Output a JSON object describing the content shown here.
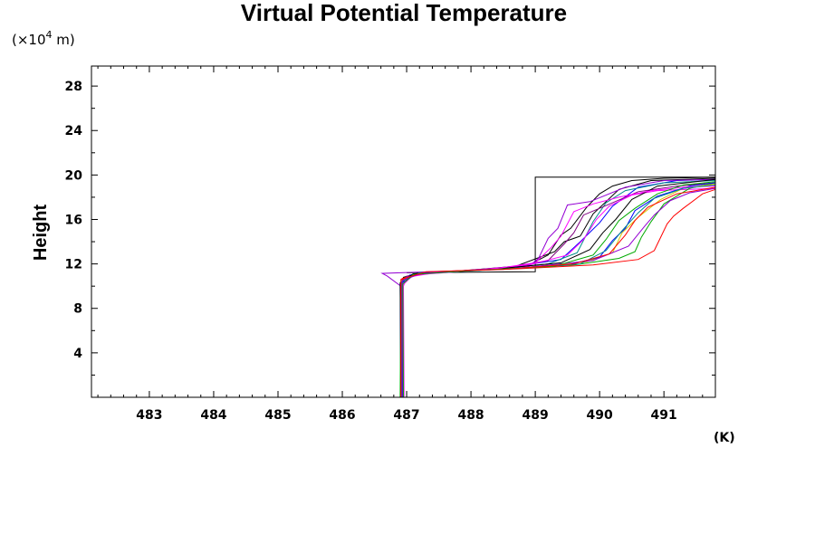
{
  "chart_data": {
    "type": "line",
    "title": "Virtual Potential Temperature",
    "ylabel": "Height",
    "y_unit": {
      "prefix": "(×10",
      "exponent": "4",
      "suffix": " m)"
    },
    "x_unit": "(K)",
    "xlim": [
      482.1,
      491.8
    ],
    "ylim": [
      0,
      29.8
    ],
    "x_ticks": [
      483,
      484,
      485,
      486,
      487,
      488,
      489,
      490,
      491
    ],
    "y_ticks": [
      4,
      8,
      12,
      16,
      20,
      24,
      28
    ],
    "grid": false,
    "legend": "none",
    "series": [
      {
        "color": "#000000",
        "points": [
          [
            486.93,
            0
          ],
          [
            486.92,
            10
          ],
          [
            486.95,
            10.8
          ],
          [
            487.2,
            11.2
          ],
          [
            487.8,
            11.35
          ],
          [
            488.4,
            11.5
          ],
          [
            488.9,
            11.9
          ],
          [
            489.2,
            12.8
          ],
          [
            489.4,
            14.6
          ],
          [
            489.55,
            15.2
          ],
          [
            489.8,
            17.1
          ],
          [
            490.0,
            18.3
          ],
          [
            490.2,
            19.0
          ],
          [
            490.5,
            19.5
          ],
          [
            491.0,
            19.7
          ],
          [
            491.8,
            19.8
          ]
        ]
      },
      {
        "color": "#000000",
        "points": [
          [
            486.93,
            0
          ],
          [
            486.93,
            10.5
          ],
          [
            487.1,
            11.1
          ],
          [
            488.0,
            11.45
          ],
          [
            488.7,
            11.8
          ],
          [
            489.3,
            13.1
          ],
          [
            489.45,
            14.0
          ],
          [
            489.7,
            14.5
          ],
          [
            489.9,
            16.5
          ],
          [
            490.3,
            18.7
          ],
          [
            490.8,
            19.5
          ],
          [
            491.8,
            19.7
          ]
        ]
      },
      {
        "color": "#000000",
        "points": [
          [
            487.0,
            11.2
          ],
          [
            489.0,
            11.3
          ],
          [
            489.0,
            19.8
          ],
          [
            491.8,
            19.8
          ]
        ]
      },
      {
        "color": "#0000ff",
        "points": [
          [
            486.91,
            0
          ],
          [
            486.9,
            10.2
          ],
          [
            487.05,
            11.0
          ],
          [
            487.6,
            11.3
          ],
          [
            488.5,
            11.6
          ],
          [
            489.4,
            12.4
          ],
          [
            489.7,
            14.0
          ],
          [
            490.0,
            15.7
          ],
          [
            490.2,
            17.2
          ],
          [
            490.6,
            18.9
          ],
          [
            491.2,
            19.5
          ],
          [
            491.8,
            19.6
          ]
        ]
      },
      {
        "color": "#008b8b",
        "points": [
          [
            486.94,
            0
          ],
          [
            486.93,
            10.3
          ],
          [
            487.1,
            11.1
          ],
          [
            488.1,
            11.4
          ],
          [
            489.2,
            12.0
          ],
          [
            489.65,
            13.0
          ],
          [
            489.9,
            15.8
          ],
          [
            490.1,
            17.5
          ],
          [
            490.4,
            18.6
          ],
          [
            491.0,
            19.3
          ],
          [
            491.8,
            19.5
          ]
        ]
      },
      {
        "color": "#9400d3",
        "points": [
          [
            486.92,
            0
          ],
          [
            486.91,
            10.0
          ],
          [
            486.7,
            10.9
          ],
          [
            486.62,
            11.15
          ],
          [
            486.9,
            11.2
          ],
          [
            487.9,
            11.4
          ],
          [
            488.9,
            11.8
          ],
          [
            489.05,
            12.5
          ],
          [
            489.2,
            14.3
          ],
          [
            489.35,
            15.2
          ],
          [
            489.5,
            17.3
          ],
          [
            489.85,
            17.6
          ],
          [
            490.4,
            18.9
          ],
          [
            491.0,
            19.5
          ],
          [
            491.8,
            19.6
          ]
        ]
      },
      {
        "color": "#800080",
        "points": [
          [
            486.92,
            0
          ],
          [
            486.92,
            10.2
          ],
          [
            487.0,
            10.9
          ],
          [
            487.6,
            11.3
          ],
          [
            488.6,
            11.7
          ],
          [
            489.2,
            12.3
          ],
          [
            489.45,
            13.8
          ],
          [
            489.6,
            14.8
          ],
          [
            489.75,
            16.4
          ],
          [
            490.0,
            17.0
          ],
          [
            490.6,
            18.5
          ],
          [
            491.2,
            19.0
          ],
          [
            491.8,
            19.3
          ]
        ]
      },
      {
        "color": "#ff00ff",
        "points": [
          [
            486.95,
            0
          ],
          [
            486.94,
            10.1
          ],
          [
            487.1,
            11.0
          ],
          [
            487.8,
            11.3
          ],
          [
            488.9,
            11.9
          ],
          [
            489.5,
            12.8
          ],
          [
            489.75,
            14.2
          ],
          [
            489.95,
            16.0
          ],
          [
            490.15,
            17.2
          ],
          [
            490.5,
            18.2
          ],
          [
            490.9,
            18.6
          ],
          [
            491.8,
            18.8
          ]
        ]
      },
      {
        "color": "#00aa00",
        "points": [
          [
            486.9,
            0
          ],
          [
            486.91,
            10.4
          ],
          [
            487.2,
            11.2
          ],
          [
            488.4,
            11.5
          ],
          [
            489.6,
            11.9
          ],
          [
            490.3,
            12.5
          ],
          [
            490.55,
            13.1
          ],
          [
            490.65,
            14.4
          ],
          [
            490.8,
            15.8
          ],
          [
            491.0,
            17.4
          ],
          [
            491.4,
            18.8
          ],
          [
            491.8,
            19.3
          ]
        ]
      },
      {
        "color": "#d4c800",
        "points": [
          [
            486.92,
            0
          ],
          [
            486.92,
            10.6
          ],
          [
            487.3,
            11.25
          ],
          [
            488.6,
            11.55
          ],
          [
            489.8,
            12.2
          ],
          [
            490.2,
            13.0
          ],
          [
            490.35,
            14.8
          ],
          [
            490.6,
            16.2
          ],
          [
            490.95,
            17.8
          ],
          [
            491.3,
            18.8
          ],
          [
            491.8,
            19.2
          ]
        ]
      },
      {
        "color": "#ff0000",
        "points": [
          [
            486.93,
            0
          ],
          [
            486.93,
            10.7
          ],
          [
            487.4,
            11.3
          ],
          [
            488.7,
            11.55
          ],
          [
            489.9,
            11.9
          ],
          [
            490.6,
            12.4
          ],
          [
            490.85,
            13.2
          ],
          [
            490.95,
            14.4
          ],
          [
            491.05,
            15.6
          ],
          [
            491.15,
            16.3
          ],
          [
            491.3,
            17.0
          ],
          [
            491.6,
            18.3
          ],
          [
            491.8,
            18.7
          ]
        ]
      },
      {
        "color": "#0000ff",
        "points": [
          [
            486.94,
            0
          ],
          [
            486.93,
            10.3
          ],
          [
            487.15,
            11.1
          ],
          [
            488.2,
            11.45
          ],
          [
            489.5,
            11.9
          ],
          [
            490.0,
            12.6
          ],
          [
            490.2,
            14.1
          ],
          [
            490.4,
            15.2
          ],
          [
            490.55,
            16.8
          ],
          [
            490.9,
            18.1
          ],
          [
            491.4,
            19.0
          ],
          [
            491.8,
            19.3
          ]
        ]
      },
      {
        "color": "#000000",
        "points": [
          [
            486.91,
            0
          ],
          [
            486.9,
            10.3
          ],
          [
            487.1,
            11.1
          ],
          [
            488.3,
            11.5
          ],
          [
            489.4,
            12.1
          ],
          [
            489.85,
            13.3
          ],
          [
            490.05,
            14.8
          ],
          [
            490.25,
            16.0
          ],
          [
            490.5,
            17.8
          ],
          [
            490.9,
            19.0
          ],
          [
            491.8,
            19.6
          ]
        ]
      },
      {
        "color": "#ff00ff",
        "points": [
          [
            486.96,
            0
          ],
          [
            486.95,
            10.0
          ],
          [
            487.0,
            10.8
          ],
          [
            487.5,
            11.25
          ],
          [
            488.3,
            11.5
          ],
          [
            489.0,
            12.1
          ],
          [
            489.25,
            13.5
          ],
          [
            489.4,
            14.5
          ],
          [
            489.6,
            16.7
          ],
          [
            489.9,
            17.4
          ],
          [
            490.3,
            18.0
          ],
          [
            490.8,
            18.6
          ],
          [
            491.3,
            18.9
          ],
          [
            491.8,
            19.0
          ]
        ]
      },
      {
        "color": "#008b8b",
        "points": [
          [
            486.92,
            0
          ],
          [
            486.92,
            10.4
          ],
          [
            487.2,
            11.2
          ],
          [
            488.5,
            11.5
          ],
          [
            489.7,
            12.0
          ],
          [
            490.1,
            13.2
          ],
          [
            490.35,
            15.0
          ],
          [
            490.6,
            16.6
          ],
          [
            490.85,
            17.9
          ],
          [
            491.3,
            18.8
          ],
          [
            491.8,
            19.1
          ]
        ]
      },
      {
        "color": "#9400d3",
        "points": [
          [
            486.93,
            0
          ],
          [
            486.93,
            10.5
          ],
          [
            487.25,
            11.2
          ],
          [
            488.7,
            11.6
          ],
          [
            489.9,
            12.3
          ],
          [
            490.45,
            13.6
          ],
          [
            490.7,
            15.4
          ],
          [
            490.85,
            16.4
          ],
          [
            491.1,
            17.7
          ],
          [
            491.4,
            18.4
          ],
          [
            491.8,
            18.8
          ]
        ]
      },
      {
        "color": "#00aa00",
        "points": [
          [
            486.95,
            0
          ],
          [
            486.94,
            10.2
          ],
          [
            487.1,
            11.05
          ],
          [
            488.0,
            11.4
          ],
          [
            489.3,
            11.8
          ],
          [
            489.9,
            12.8
          ],
          [
            490.1,
            14.2
          ],
          [
            490.3,
            15.9
          ],
          [
            490.55,
            17.0
          ],
          [
            490.9,
            18.3
          ],
          [
            491.3,
            19.1
          ],
          [
            491.8,
            19.4
          ]
        ]
      },
      {
        "color": "#ff0000",
        "points": [
          [
            486.91,
            0
          ],
          [
            486.91,
            10.6
          ],
          [
            487.3,
            11.3
          ],
          [
            488.5,
            11.5
          ],
          [
            489.6,
            12.0
          ],
          [
            490.15,
            12.9
          ],
          [
            490.4,
            14.6
          ],
          [
            490.55,
            15.9
          ],
          [
            490.75,
            17.1
          ],
          [
            491.2,
            18.3
          ],
          [
            491.8,
            18.9
          ]
        ]
      }
    ]
  }
}
